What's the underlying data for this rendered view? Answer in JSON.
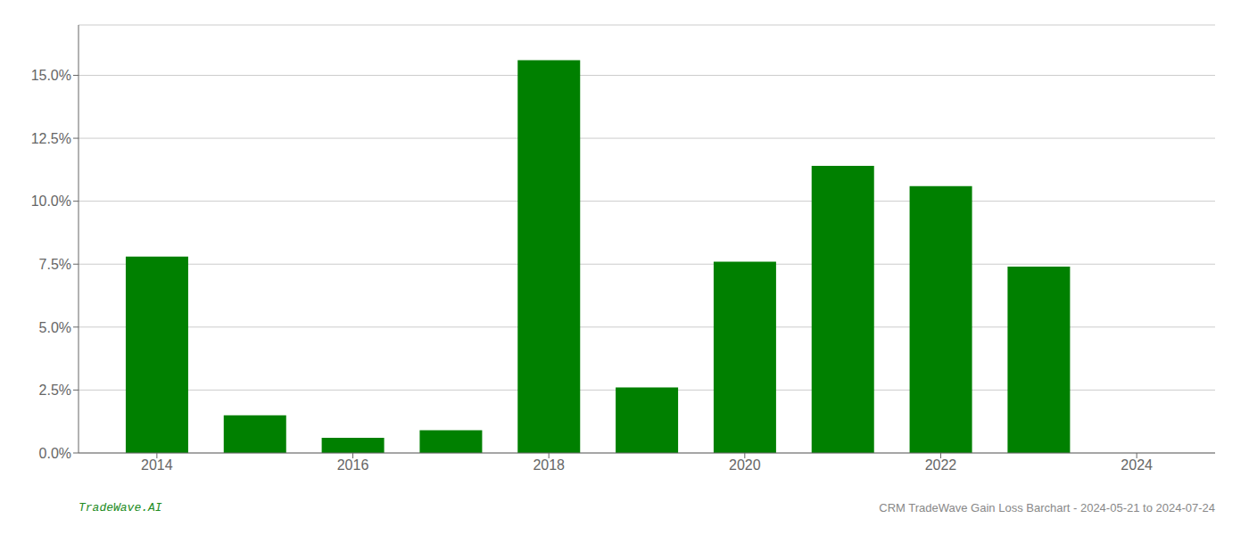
{
  "chart_data": {
    "type": "bar",
    "x": [
      2014,
      2015,
      2016,
      2017,
      2018,
      2019,
      2020,
      2021,
      2022,
      2023
    ],
    "values": [
      0.078,
      0.015,
      0.006,
      0.009,
      0.156,
      0.026,
      0.076,
      0.114,
      0.106,
      0.074
    ],
    "color": "#008000",
    "xlim": [
      2013.2,
      2024.8
    ],
    "xticks": [
      2014,
      2016,
      2018,
      2020,
      2022,
      2024
    ],
    "ylim": [
      0,
      0.17
    ],
    "yticks": [
      {
        "value": 0.0,
        "label": "0.0%"
      },
      {
        "value": 0.025,
        "label": "2.5%"
      },
      {
        "value": 0.05,
        "label": "5.0%"
      },
      {
        "value": 0.075,
        "label": "7.5%"
      },
      {
        "value": 0.1,
        "label": "10.0%"
      },
      {
        "value": 0.125,
        "label": "12.5%"
      },
      {
        "value": 0.15,
        "label": "15.0%"
      }
    ],
    "grid": true,
    "annotations": [
      "TradeWave.AI",
      "CRM TradeWave Gain Loss Barchart - 2024-05-21 to 2024-07-24"
    ]
  }
}
